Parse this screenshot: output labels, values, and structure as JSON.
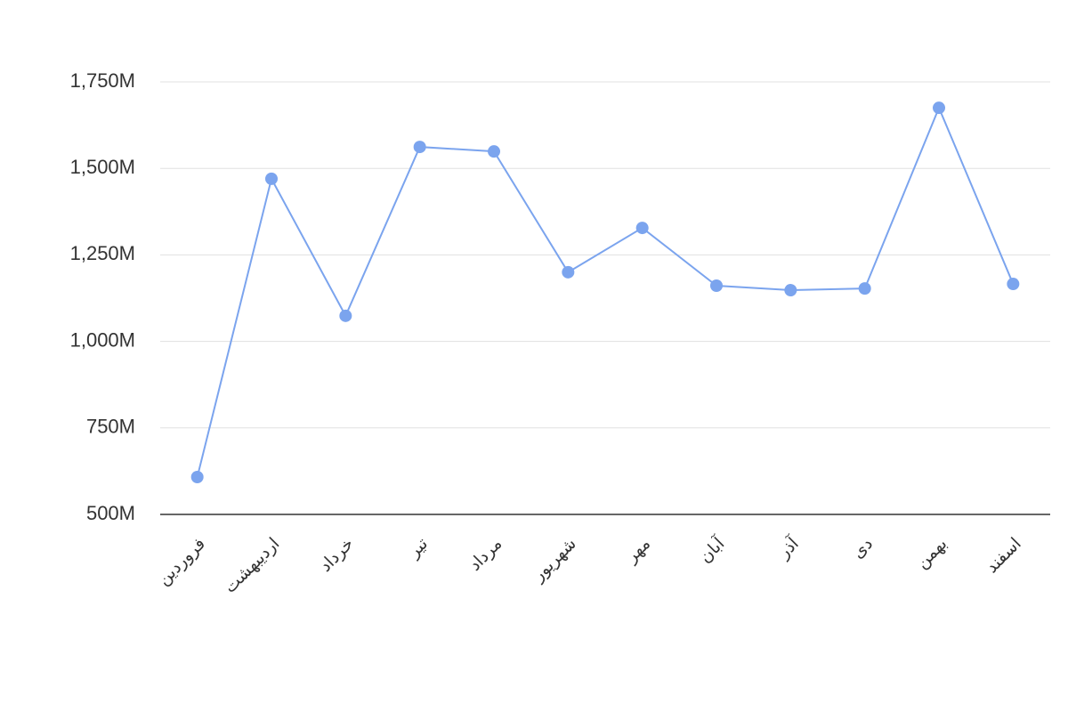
{
  "chart_data": {
    "type": "line",
    "categories": [
      "فروردین",
      "اردیبهشت",
      "خرداد",
      "تیر",
      "مرداد",
      "شهریور",
      "مهر",
      "آبان",
      "آذر",
      "دی",
      "بهمن",
      "اسفند"
    ],
    "values": [
      608000000,
      1470000000,
      1074000000,
      1562000000,
      1549000000,
      1200000000,
      1328000000,
      1161000000,
      1148000000,
      1153000000,
      1675000000,
      1166000000
    ],
    "color": "#7ba4ee",
    "ylim": [
      500000000,
      1750000000
    ],
    "yticks": [
      {
        "value": 500000000,
        "label": "500M"
      },
      {
        "value": 750000000,
        "label": "750M"
      },
      {
        "value": 1000000000,
        "label": "1,000M"
      },
      {
        "value": 1250000000,
        "label": "1,250M"
      },
      {
        "value": 1500000000,
        "label": "1,500M"
      },
      {
        "value": 1750000000,
        "label": "1,750M"
      }
    ],
    "grid": true
  }
}
